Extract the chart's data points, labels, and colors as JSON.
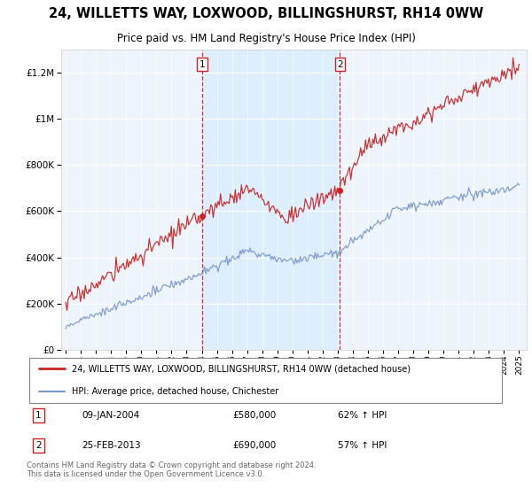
{
  "title_line1": "24, WILLETTS WAY, LOXWOOD, BILLINGSHURST, RH14 0WW",
  "title_line2": "Price paid vs. HM Land Registry's House Price Index (HPI)",
  "red_label": "24, WILLETTS WAY, LOXWOOD, BILLINGSHURST, RH14 0WW (detached house)",
  "blue_label": "HPI: Average price, detached house, Chichester",
  "annotation1": {
    "num": "1",
    "date": "09-JAN-2004",
    "price": "£580,000",
    "pct": "62% ↑ HPI"
  },
  "annotation2": {
    "num": "2",
    "date": "25-FEB-2013",
    "price": "£690,000",
    "pct": "57% ↑ HPI"
  },
  "footnote": "Contains HM Land Registry data © Crown copyright and database right 2024.\nThis data is licensed under the Open Government Licence v3.0.",
  "ylim": [
    0,
    1300000
  ],
  "yticks": [
    0,
    200000,
    400000,
    600000,
    800000,
    1000000,
    1200000
  ],
  "red_color": "#cc2222",
  "blue_color": "#7799cc",
  "vline_color": "#cc2222",
  "shade_color": "#ddeeff",
  "plot_bg_color": "#eef4fb",
  "marker1_x_year": 2004.04,
  "marker1_y": 580000,
  "marker2_x_year": 2013.15,
  "marker2_y": 690000,
  "xlim_left": 1994.7,
  "xlim_right": 2025.5
}
